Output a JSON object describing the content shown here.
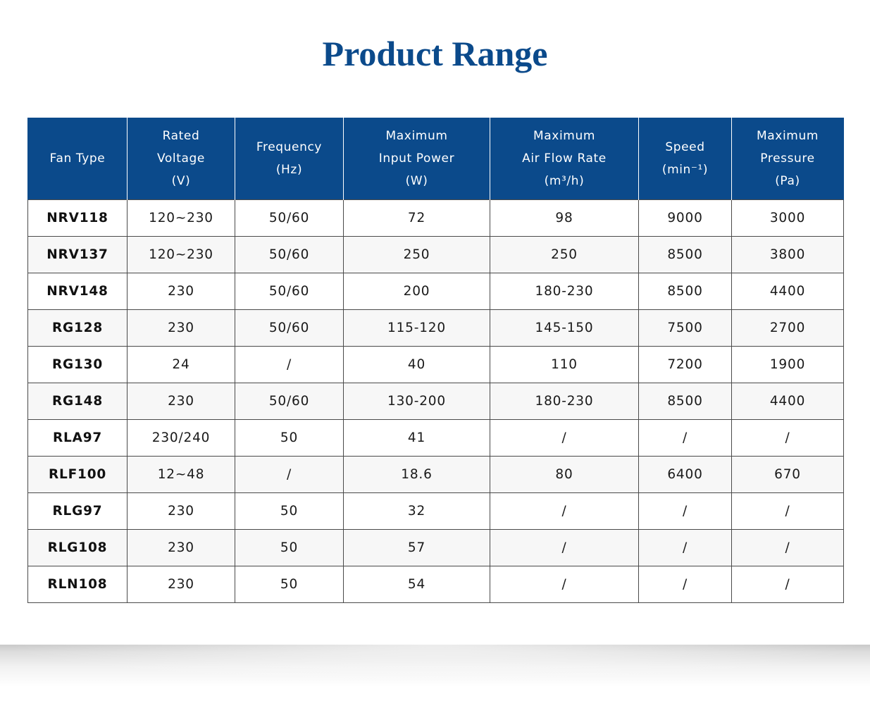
{
  "title": "Product Range",
  "table": {
    "headers": [
      {
        "lines": [
          "Fan Type"
        ]
      },
      {
        "lines": [
          "Rated",
          "Voltage",
          "(V)"
        ]
      },
      {
        "lines": [
          "Frequency",
          "(Hz)"
        ]
      },
      {
        "lines": [
          "Maximum",
          "Input Power",
          "(W)"
        ]
      },
      {
        "lines": [
          "Maximum",
          "Air Flow Rate",
          "(m³/h)"
        ]
      },
      {
        "lines": [
          "Speed",
          "(min⁻¹)"
        ]
      },
      {
        "lines": [
          "Maximum",
          "Pressure",
          "(Pa)"
        ]
      }
    ],
    "rows": [
      [
        "NRV118",
        "120~230",
        "50/60",
        "72",
        "98",
        "9000",
        "3000"
      ],
      [
        "NRV137",
        "120~230",
        "50/60",
        "250",
        "250",
        "8500",
        "3800"
      ],
      [
        "NRV148",
        "230",
        "50/60",
        "200",
        "180-230",
        "8500",
        "4400"
      ],
      [
        "RG128",
        "230",
        "50/60",
        "115-120",
        "145-150",
        "7500",
        "2700"
      ],
      [
        "RG130",
        "24",
        "/",
        "40",
        "110",
        "7200",
        "1900"
      ],
      [
        "RG148",
        "230",
        "50/60",
        "130-200",
        "180-230",
        "8500",
        "4400"
      ],
      [
        "RLA97",
        "230/240",
        "50",
        "41",
        "/",
        "/",
        "/"
      ],
      [
        "RLF100",
        "12~48",
        "/",
        "18.6",
        "80",
        "6400",
        "670"
      ],
      [
        "RLG97",
        "230",
        "50",
        "32",
        "/",
        "/",
        "/"
      ],
      [
        "RLG108",
        "230",
        "50",
        "57",
        "/",
        "/",
        "/"
      ],
      [
        "RLN108",
        "230",
        "50",
        "54",
        "/",
        "/",
        "/"
      ]
    ]
  },
  "colors": {
    "title": "#0b4a8b",
    "header_background": "#0b4a8b",
    "header_text": "#ffffff",
    "grid": "#4a4a4a"
  }
}
